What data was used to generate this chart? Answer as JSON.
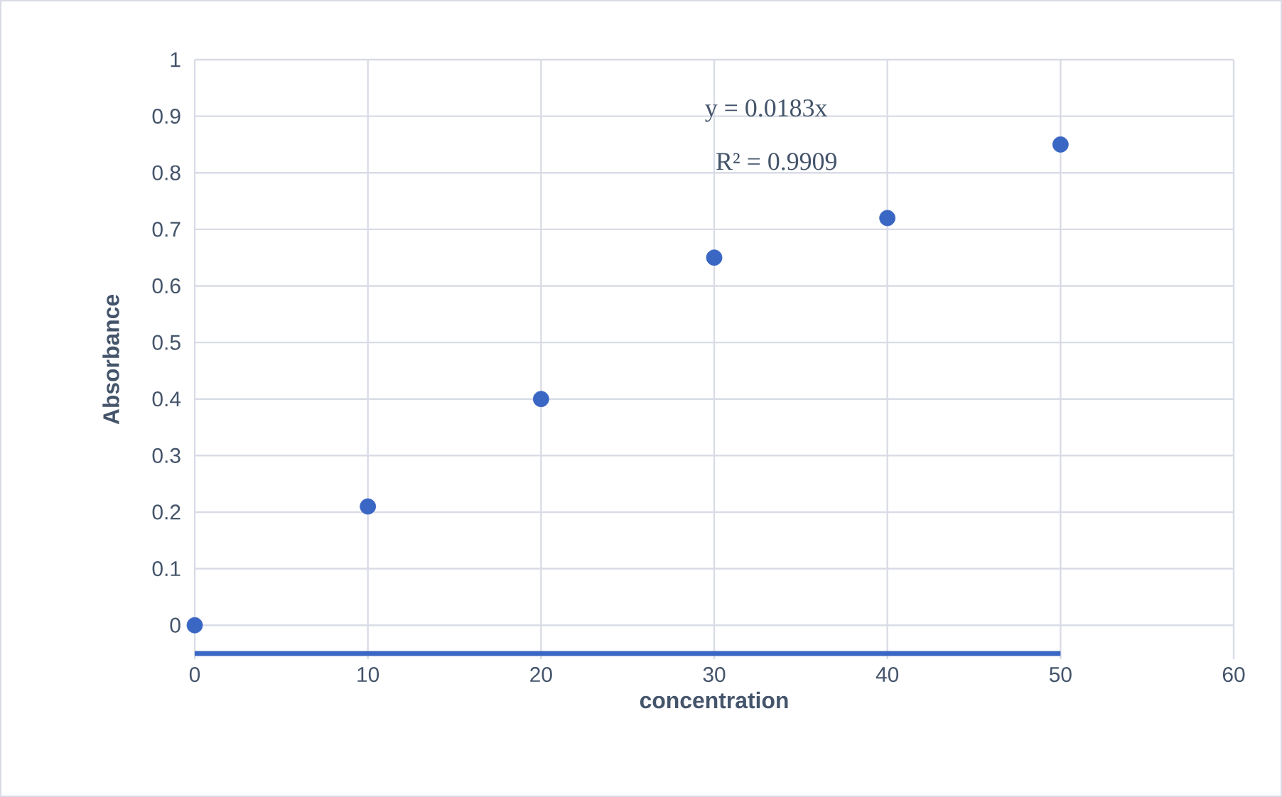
{
  "chart_data": {
    "type": "scatter",
    "xlabel": "concentration",
    "ylabel": "Absorbance",
    "xlim": [
      0,
      60
    ],
    "xticks": [
      0,
      10,
      20,
      30,
      40,
      50,
      60
    ],
    "ylim": [
      -0.06,
      1
    ],
    "yticks": [
      0,
      0.1,
      0.2,
      0.3,
      0.4,
      0.5,
      0.6,
      0.7,
      0.8,
      0.9,
      1
    ],
    "grid": true,
    "marker": "circle",
    "series": [
      {
        "color": "#3a66c4",
        "x": [
          0,
          10,
          20,
          30,
          40,
          50
        ],
        "values": [
          0,
          0.21,
          0.4,
          0.65,
          0.72,
          0.85
        ]
      },
      {
        "type": "line",
        "color": "#3a66c4",
        "line_style": "solid",
        "marker": "none",
        "x": [
          0,
          50
        ],
        "values": [
          -0.05,
          -0.05
        ]
      }
    ],
    "annotations": [
      "y = 0.0183x",
      "R² = 0.9909"
    ]
  }
}
